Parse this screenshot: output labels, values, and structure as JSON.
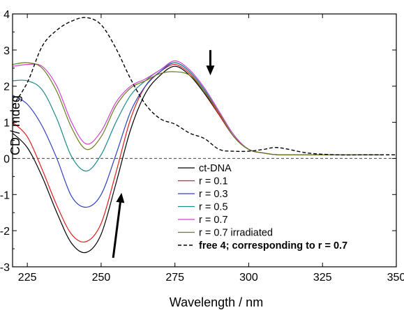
{
  "chart_data": {
    "type": "line",
    "xlabel": "Wavelength / nm",
    "ylabel": "CD / mdeg",
    "xlim": [
      220,
      350
    ],
    "ylim": [
      -3,
      4
    ],
    "xticks": [
      "225",
      "250",
      "275",
      "300",
      "325",
      "350"
    ],
    "yticks": [
      "-3",
      "-2",
      "-1",
      "0",
      "1",
      "2",
      "3",
      "4"
    ],
    "legend_position": "bottom-right",
    "series": [
      {
        "name": "ct-DNA",
        "color": "#000000",
        "dash": "solid",
        "x": [
          220,
          225,
          230,
          235,
          240,
          245,
          250,
          255,
          260,
          265,
          270,
          275,
          280,
          285,
          290,
          295,
          300,
          305,
          310,
          320,
          330,
          340,
          345
        ],
        "y": [
          0.7,
          0.3,
          -0.5,
          -1.5,
          -2.35,
          -2.6,
          -2.1,
          -0.7,
          0.8,
          1.8,
          2.3,
          2.55,
          2.3,
          1.8,
          1.2,
          0.6,
          0.25,
          0.15,
          0.1,
          0.1,
          0.1,
          0.1,
          0.1
        ]
      },
      {
        "name": "r = 0.1",
        "color": "#e41a1c",
        "dash": "solid",
        "x": [
          220,
          225,
          230,
          235,
          240,
          245,
          250,
          255,
          260,
          265,
          270,
          275,
          280,
          285,
          290,
          295,
          300,
          305,
          310,
          320,
          330,
          340,
          345
        ],
        "y": [
          1.0,
          0.6,
          -0.3,
          -1.3,
          -2.1,
          -2.3,
          -1.8,
          -0.4,
          1.1,
          2.0,
          2.4,
          2.6,
          2.35,
          1.85,
          1.2,
          0.6,
          0.25,
          0.15,
          0.1,
          0.1,
          0.1,
          0.1,
          0.1
        ]
      },
      {
        "name": "r = 0.3",
        "color": "#3040c0",
        "dash": "solid",
        "x": [
          220,
          225,
          230,
          235,
          240,
          245,
          250,
          255,
          260,
          265,
          270,
          275,
          280,
          285,
          290,
          295,
          300,
          305,
          310,
          320,
          330,
          340,
          345
        ],
        "y": [
          1.75,
          1.5,
          0.9,
          0.0,
          -1.05,
          -1.35,
          -1.0,
          0.1,
          1.3,
          2.0,
          2.4,
          2.65,
          2.4,
          1.9,
          1.25,
          0.6,
          0.25,
          0.15,
          0.1,
          0.1,
          0.1,
          0.1,
          0.1
        ]
      },
      {
        "name": "r = 0.5",
        "color": "#1a8a8a",
        "dash": "solid",
        "x": [
          220,
          225,
          230,
          235,
          240,
          245,
          250,
          255,
          260,
          265,
          270,
          275,
          280,
          285,
          290,
          295,
          300,
          305,
          310,
          320,
          330,
          340,
          345
        ],
        "y": [
          2.15,
          2.15,
          1.9,
          1.1,
          0.05,
          -0.35,
          0.1,
          1.0,
          1.75,
          2.15,
          2.45,
          2.65,
          2.4,
          1.9,
          1.25,
          0.6,
          0.25,
          0.15,
          0.1,
          0.1,
          0.1,
          0.1,
          0.1
        ]
      },
      {
        "name": "r = 0.7",
        "color": "#d040d0",
        "dash": "solid",
        "x": [
          220,
          225,
          230,
          235,
          240,
          245,
          250,
          255,
          260,
          265,
          270,
          275,
          280,
          285,
          290,
          295,
          300,
          305,
          310,
          320,
          330,
          340,
          345
        ],
        "y": [
          2.55,
          2.6,
          2.55,
          2.0,
          1.0,
          0.4,
          0.75,
          1.55,
          2.0,
          2.2,
          2.45,
          2.7,
          2.45,
          1.95,
          1.3,
          0.65,
          0.25,
          0.15,
          0.1,
          0.1,
          0.1,
          0.1,
          0.1
        ]
      },
      {
        "name": "r = 0.7 irradiated",
        "color": "#6b7a1a",
        "dash": "solid",
        "x": [
          220,
          225,
          230,
          235,
          240,
          245,
          250,
          255,
          260,
          265,
          270,
          275,
          280,
          285,
          290,
          295,
          300,
          305,
          310,
          320,
          330,
          340,
          345
        ],
        "y": [
          2.6,
          2.65,
          2.5,
          1.85,
          0.85,
          0.25,
          0.6,
          1.45,
          1.95,
          2.15,
          2.35,
          2.4,
          2.3,
          1.85,
          1.25,
          0.6,
          0.25,
          0.15,
          0.1,
          0.1,
          0.1,
          0.1,
          0.1
        ]
      },
      {
        "name": "free 4; corresponding to r = 0.7",
        "color": "#000000",
        "dash": "dashed",
        "x": [
          220,
          225,
          230,
          235,
          240,
          245,
          250,
          255,
          260,
          265,
          270,
          275,
          280,
          285,
          290,
          295,
          300,
          305,
          310,
          320,
          330,
          340,
          350
        ],
        "y": [
          1.45,
          2.1,
          3.1,
          3.55,
          3.8,
          3.9,
          3.7,
          3.05,
          2.2,
          1.5,
          1.1,
          0.95,
          0.7,
          0.55,
          0.25,
          0.2,
          0.2,
          0.25,
          0.3,
          0.15,
          0.1,
          0.1,
          0.1
        ]
      }
    ],
    "reference_line": {
      "y": 0,
      "style": "dashed"
    },
    "annotations": [
      {
        "type": "arrow",
        "direction": "down",
        "x": 287,
        "y_from": 3.0,
        "y_to": 2.3
      },
      {
        "type": "arrow",
        "direction": "up",
        "x": 255.5,
        "y_from": -2.75,
        "y_to": -0.95
      }
    ]
  }
}
